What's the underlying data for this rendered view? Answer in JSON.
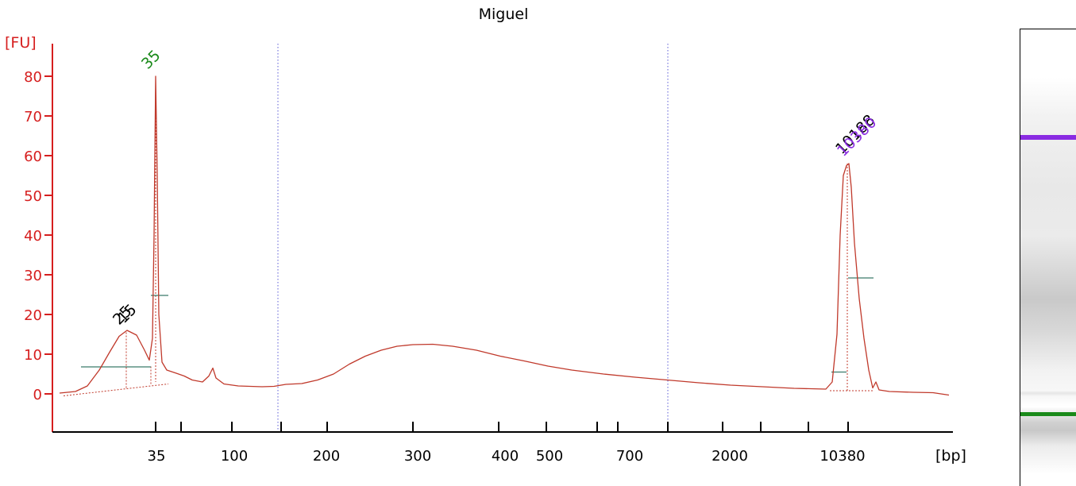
{
  "chart_data": {
    "type": "line",
    "title": "Miguel",
    "ylabel": "[FU]",
    "xlabel": "[bp]",
    "ylim": [
      -9,
      89
    ],
    "yticks": [
      0,
      10,
      20,
      30,
      40,
      50,
      60,
      70,
      80
    ],
    "x_tick_labels": [
      "35",
      "100",
      "200",
      "300",
      "400",
      "500",
      "700",
      "2000",
      "10380"
    ],
    "peak_labels": [
      {
        "text": "35",
        "color": "#1a8a1a"
      },
      {
        "text": "25",
        "color": "#000000"
      },
      {
        "text": "15",
        "color": "#000000"
      },
      {
        "text": "10188",
        "color": "#000000"
      },
      {
        "text": "10380",
        "color": "#8a2be2"
      }
    ],
    "series": [
      {
        "color": "#c0392b",
        "points": [
          [
            75,
            0.2
          ],
          [
            95,
            0.6
          ],
          [
            110,
            2.0
          ],
          [
            125,
            6.0
          ],
          [
            138,
            10.5
          ],
          [
            150,
            14.5
          ],
          [
            160,
            16.0
          ],
          [
            172,
            14.8
          ],
          [
            182,
            11.0
          ],
          [
            188,
            8.5
          ],
          [
            192,
            14.0
          ],
          [
            194,
            40.0
          ],
          [
            196,
            80.0
          ],
          [
            198,
            55.0
          ],
          [
            200,
            20.0
          ],
          [
            204,
            8.0
          ],
          [
            210,
            6.0
          ],
          [
            222,
            5.2
          ],
          [
            232,
            4.5
          ],
          [
            242,
            3.5
          ],
          [
            255,
            3.0
          ],
          [
            263,
            4.5
          ],
          [
            268,
            6.5
          ],
          [
            272,
            4.0
          ],
          [
            282,
            2.5
          ],
          [
            300,
            2.0
          ],
          [
            330,
            1.8
          ],
          [
            345,
            1.9
          ],
          [
            360,
            2.4
          ],
          [
            380,
            2.6
          ],
          [
            400,
            3.5
          ],
          [
            420,
            5.0
          ],
          [
            440,
            7.5
          ],
          [
            460,
            9.5
          ],
          [
            480,
            11.0
          ],
          [
            500,
            12.0
          ],
          [
            520,
            12.4
          ],
          [
            545,
            12.5
          ],
          [
            570,
            12.0
          ],
          [
            600,
            11.0
          ],
          [
            630,
            9.5
          ],
          [
            660,
            8.3
          ],
          [
            690,
            7.0
          ],
          [
            720,
            6.0
          ],
          [
            760,
            5.0
          ],
          [
            800,
            4.2
          ],
          [
            840,
            3.5
          ],
          [
            880,
            2.8
          ],
          [
            920,
            2.2
          ],
          [
            960,
            1.8
          ],
          [
            1000,
            1.4
          ],
          [
            1040,
            1.2
          ],
          [
            1048,
            3.0
          ],
          [
            1054,
            15.0
          ],
          [
            1058,
            40.0
          ],
          [
            1062,
            55.0
          ],
          [
            1066,
            57.5
          ],
          [
            1069,
            58.0
          ],
          [
            1072,
            52.0
          ],
          [
            1076,
            38.0
          ],
          [
            1082,
            24.0
          ],
          [
            1088,
            14.0
          ],
          [
            1094,
            6.0
          ],
          [
            1099,
            1.5
          ],
          [
            1103,
            3.0
          ],
          [
            1107,
            1.0
          ],
          [
            1120,
            0.6
          ],
          [
            1150,
            0.4
          ],
          [
            1175,
            0.3
          ],
          [
            1195,
            -0.3
          ]
        ]
      }
    ]
  },
  "gel": {
    "bands": [
      {
        "color": "#8a2be2"
      },
      {
        "color": "#1a8a1a"
      }
    ]
  }
}
